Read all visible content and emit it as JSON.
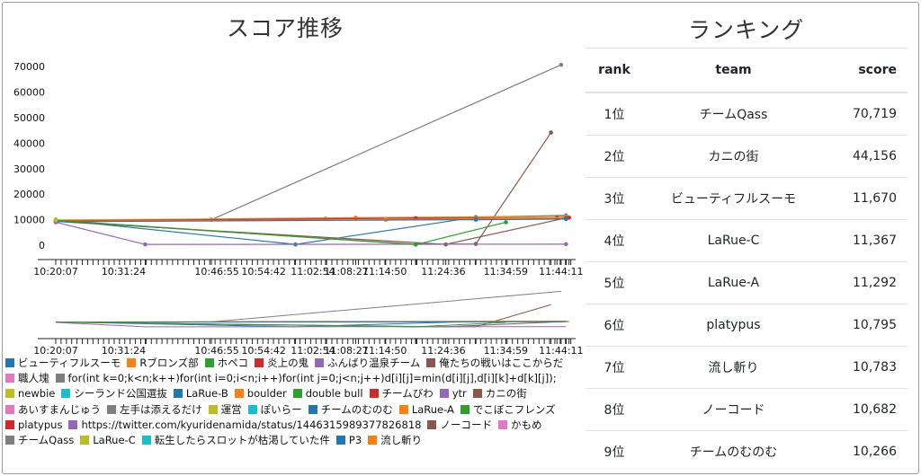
{
  "chart": {
    "title": "スコア推移",
    "y_ticks": [
      "70000",
      "60000",
      "50000",
      "40000",
      "30000",
      "20000",
      "10000",
      "0"
    ],
    "x_ticks": [
      "10:20:07",
      "10:31:24",
      "10:46:55",
      "10:54:42",
      "11:02:54",
      "11:08:27",
      "11:14:50",
      "11:24:36",
      "11:34:59",
      "11:44:11"
    ],
    "legend": [
      {
        "name": "ビューティフルスーモ",
        "color": "#1f77b4"
      },
      {
        "name": "Rブロンズ部",
        "color": "#ff7f0e"
      },
      {
        "name": "ホペコ",
        "color": "#2ca02c"
      },
      {
        "name": "炎上の鬼",
        "color": "#d62728"
      },
      {
        "name": "ふんばり温泉チーム",
        "color": "#9467bd"
      },
      {
        "name": "俺たちの戦いはここからだ",
        "color": "#8c564b"
      },
      {
        "name": "職人塊",
        "color": "#e377c2"
      },
      {
        "name": "for(int k=0;k<n;k++)for(int i=0;i<n;i++)for(int j=0;j<n;j++)d[i][j]=min(d[i][j],d[i][k]+d[k][j]);",
        "color": "#7f7f7f"
      },
      {
        "name": "newbie",
        "color": "#bcbd22"
      },
      {
        "name": "シーランド公国選抜",
        "color": "#17becf"
      },
      {
        "name": "LaRue-B",
        "color": "#1f77b4"
      },
      {
        "name": "boulder",
        "color": "#ff7f0e"
      },
      {
        "name": "double bull",
        "color": "#2ca02c"
      },
      {
        "name": "チームびわ",
        "color": "#d62728"
      },
      {
        "name": "ytr",
        "color": "#9467bd"
      },
      {
        "name": "カニの街",
        "color": "#8c564b"
      },
      {
        "name": "あいすまんじゅう",
        "color": "#e377c2"
      },
      {
        "name": "左手は添えるだけ",
        "color": "#7f7f7f"
      },
      {
        "name": "運営",
        "color": "#bcbd22"
      },
      {
        "name": "ぽいらー",
        "color": "#17becf"
      },
      {
        "name": "チームのむのむ",
        "color": "#1f77b4"
      },
      {
        "name": "LaRue-A",
        "color": "#ff7f0e"
      },
      {
        "name": "でこぼこフレンズ",
        "color": "#2ca02c"
      },
      {
        "name": "platypus",
        "color": "#d62728"
      },
      {
        "name": "https://twitter.com/kyuridenamida/status/1446315989377826818",
        "color": "#9467bd"
      },
      {
        "name": "ノーコード",
        "color": "#8c564b"
      },
      {
        "name": "かもめ",
        "color": "#e377c2"
      },
      {
        "name": "チームQass",
        "color": "#7f7f7f"
      },
      {
        "name": "LaRue-C",
        "color": "#bcbd22"
      },
      {
        "name": "転生したらスロットが枯渇していた件",
        "color": "#17becf"
      },
      {
        "name": "P3",
        "color": "#1f77b4"
      },
      {
        "name": "流し斬り",
        "color": "#ff7f0e"
      }
    ]
  },
  "chart_data": {
    "type": "line",
    "title": "スコア推移",
    "x_range": [
      "10:20:07",
      "11:46:00"
    ],
    "ylim": [
      0,
      75000
    ],
    "series": [
      {
        "name": "チームQass",
        "color": "#7f7f7f",
        "x": [
          "10:20:07",
          "10:46:00",
          "11:44:11"
        ],
        "values": [
          9800,
          10000,
          70719
        ]
      },
      {
        "name": "カニの街",
        "color": "#8c564b",
        "x": [
          "10:20:07",
          "11:20:00",
          "11:30:00",
          "11:42:30"
        ],
        "values": [
          9600,
          300,
          500,
          44156
        ]
      },
      {
        "name": "ビューティフルスーモ",
        "color": "#1f77b4",
        "x": [
          "10:20:07",
          "11:00:00",
          "11:30:00",
          "11:45:00"
        ],
        "values": [
          10000,
          300,
          11000,
          11670
        ]
      },
      {
        "name": "LaRue-C",
        "color": "#bcbd22",
        "x": [
          "10:20:07",
          "11:05:00",
          "11:45:00"
        ],
        "values": [
          9900,
          10500,
          11367
        ]
      },
      {
        "name": "LaRue-A",
        "color": "#ff7f0e",
        "x": [
          "10:20:07",
          "11:10:00",
          "11:45:00"
        ],
        "values": [
          9700,
          10800,
          11292
        ]
      },
      {
        "name": "platypus",
        "color": "#d62728",
        "x": [
          "10:20:07",
          "11:20:00",
          "11:43:30",
          "11:45:30"
        ],
        "values": [
          9500,
          10600,
          10700,
          10795
        ]
      },
      {
        "name": "流し斬り",
        "color": "#ff7f0e",
        "x": [
          "10:20:07",
          "11:15:00",
          "11:45:00"
        ],
        "values": [
          9400,
          10000,
          10783
        ]
      },
      {
        "name": "ノーコード",
        "color": "#8c564b",
        "x": [
          "10:20:07",
          "11:25:00",
          "11:45:00"
        ],
        "values": [
          9300,
          300,
          10682
        ]
      },
      {
        "name": "チームのむのむ",
        "color": "#1f77b4",
        "x": [
          "10:20:07",
          "11:30:00",
          "11:45:00"
        ],
        "values": [
          9200,
          10000,
          10266
        ]
      },
      {
        "name": "ふんばり温泉チーム",
        "color": "#9467bd",
        "x": [
          "10:20:07",
          "10:35:00",
          "11:45:00"
        ],
        "values": [
          9000,
          300,
          400
        ]
      },
      {
        "name": "double bull",
        "color": "#2ca02c",
        "x": [
          "10:20:07",
          "11:20:00",
          "11:35:00"
        ],
        "values": [
          9800,
          200,
          9000
        ]
      },
      {
        "name": "newbie",
        "color": "#bcbd22",
        "x": [
          "10:20:07"
        ],
        "values": [
          9800
        ]
      }
    ]
  },
  "ranking": {
    "title": "ランキング",
    "headers": {
      "rank": "rank",
      "team": "team",
      "score": "score"
    },
    "rows": [
      {
        "rank": "1位",
        "team": "チームQass",
        "score": "70,719"
      },
      {
        "rank": "2位",
        "team": "カニの街",
        "score": "44,156"
      },
      {
        "rank": "3位",
        "team": "ビューティフルスーモ",
        "score": "11,670"
      },
      {
        "rank": "4位",
        "team": "LaRue-C",
        "score": "11,367"
      },
      {
        "rank": "5位",
        "team": "LaRue-A",
        "score": "11,292"
      },
      {
        "rank": "6位",
        "team": "platypus",
        "score": "10,795"
      },
      {
        "rank": "7位",
        "team": "流し斬り",
        "score": "10,783"
      },
      {
        "rank": "8位",
        "team": "ノーコード",
        "score": "10,682"
      },
      {
        "rank": "9位",
        "team": "チームのむのむ",
        "score": "10,266"
      }
    ]
  }
}
